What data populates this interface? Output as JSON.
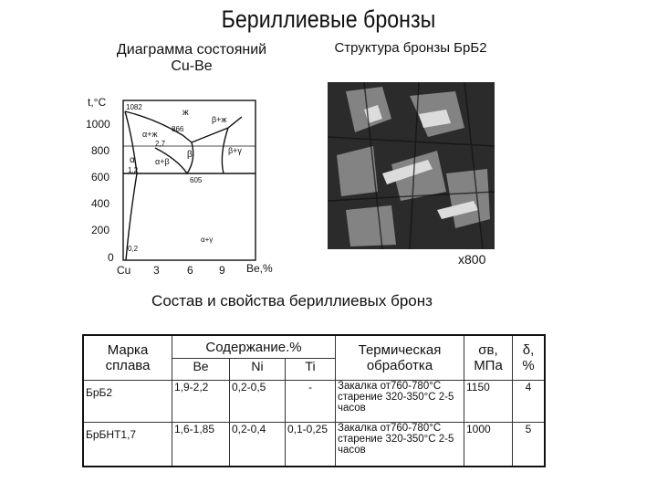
{
  "page": {
    "title": "Бериллиевые бронзы",
    "diagram_title_line1": "Диаграмма состояний",
    "diagram_title_line2": "Cu-Be",
    "structure_title": "Структура бронзы БрБ2",
    "magnification": "x800",
    "table_title": "Состав и свойства бериллиевых бронз"
  },
  "phase_diagram": {
    "y_axis_label": "t,°C",
    "x_axis_label": "Be,%",
    "y_ticks": [
      "1000",
      "800",
      "600",
      "400",
      "200",
      "0"
    ],
    "x_ticks": [
      "Cu",
      "3",
      "6",
      "9"
    ],
    "point_labels": [
      "1082",
      "866",
      "605",
      "1,2",
      "2,7",
      "0,2"
    ],
    "region_labels": [
      "ж",
      "α+ж",
      "β+ж",
      "β",
      "β+γ",
      "α",
      "α+β",
      "α+γ"
    ]
  },
  "table": {
    "headers": {
      "grade": "Марка сплава",
      "content": "Содержание.%",
      "treatment": "Термическая обработка",
      "sigma": "σв, МПа",
      "delta": "δ, %"
    },
    "elements": [
      "Be",
      "Ni",
      "Ti"
    ],
    "rows": [
      {
        "grade": "БрБ2",
        "be": "1,9-2,2",
        "ni": "0,2-0,5",
        "ti": "-",
        "treatment": "Закалка от760-780°С старение 320-350°С 2-5 часов",
        "sigma": "1150",
        "delta": "4"
      },
      {
        "grade": "БрБНТ1,7",
        "be": "1,6-1,85",
        "ni": "0,2-0,4",
        "ti": "0,1-0,25",
        "treatment": "Закалка от760-780°С старение 320-350°С 2-5 часов",
        "sigma": "1000",
        "delta": "5"
      }
    ]
  }
}
